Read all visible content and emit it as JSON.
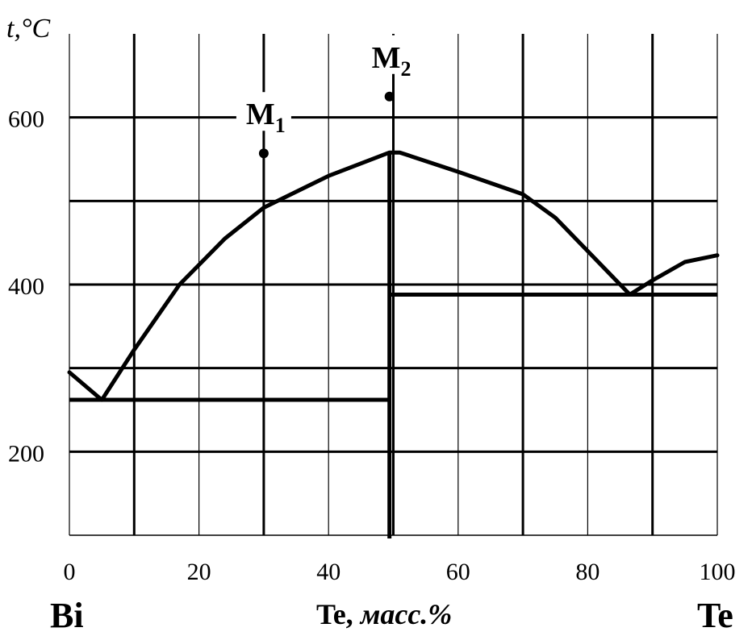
{
  "chart_data": {
    "type": "line",
    "ylabel": "t,°C",
    "xlabel_element": "Te,",
    "xlabel_unit": "масс.%",
    "left_component": "Bi",
    "right_component": "Te",
    "xlim": [
      0,
      100
    ],
    "ylim": [
      100,
      700
    ],
    "x_ticks": [
      0,
      20,
      40,
      60,
      80,
      100
    ],
    "y_ticks": [
      200,
      400,
      600
    ],
    "x_grid": [
      0,
      10,
      20,
      30,
      40,
      50,
      60,
      70,
      80,
      90,
      100
    ],
    "y_grid": [
      200,
      300,
      400,
      500,
      600
    ],
    "grid": true,
    "liquidus": [
      [
        0,
        295
      ],
      [
        5,
        262
      ],
      [
        10,
        322
      ],
      [
        17,
        400
      ],
      [
        24,
        455
      ],
      [
        30,
        492
      ],
      [
        40,
        530
      ],
      [
        49.4,
        558
      ],
      [
        51,
        558
      ],
      [
        60,
        535
      ],
      [
        70,
        508
      ],
      [
        75,
        480
      ],
      [
        80,
        440
      ],
      [
        86.5,
        388
      ],
      [
        90,
        405
      ],
      [
        95,
        427
      ],
      [
        100,
        435
      ]
    ],
    "compound_line": {
      "x": 49.4,
      "y_from": 100,
      "y_to": 558
    },
    "eutectic_lines": [
      {
        "x_from": 0,
        "x_to": 49.4,
        "y": 262
      },
      {
        "x_from": 49.4,
        "x_to": 100,
        "y": 388
      }
    ],
    "points": [
      {
        "label": "M",
        "subscript": "1",
        "x": 30,
        "y": 557
      },
      {
        "label": "M",
        "subscript": "2",
        "x": 49.4,
        "y": 625
      }
    ]
  }
}
